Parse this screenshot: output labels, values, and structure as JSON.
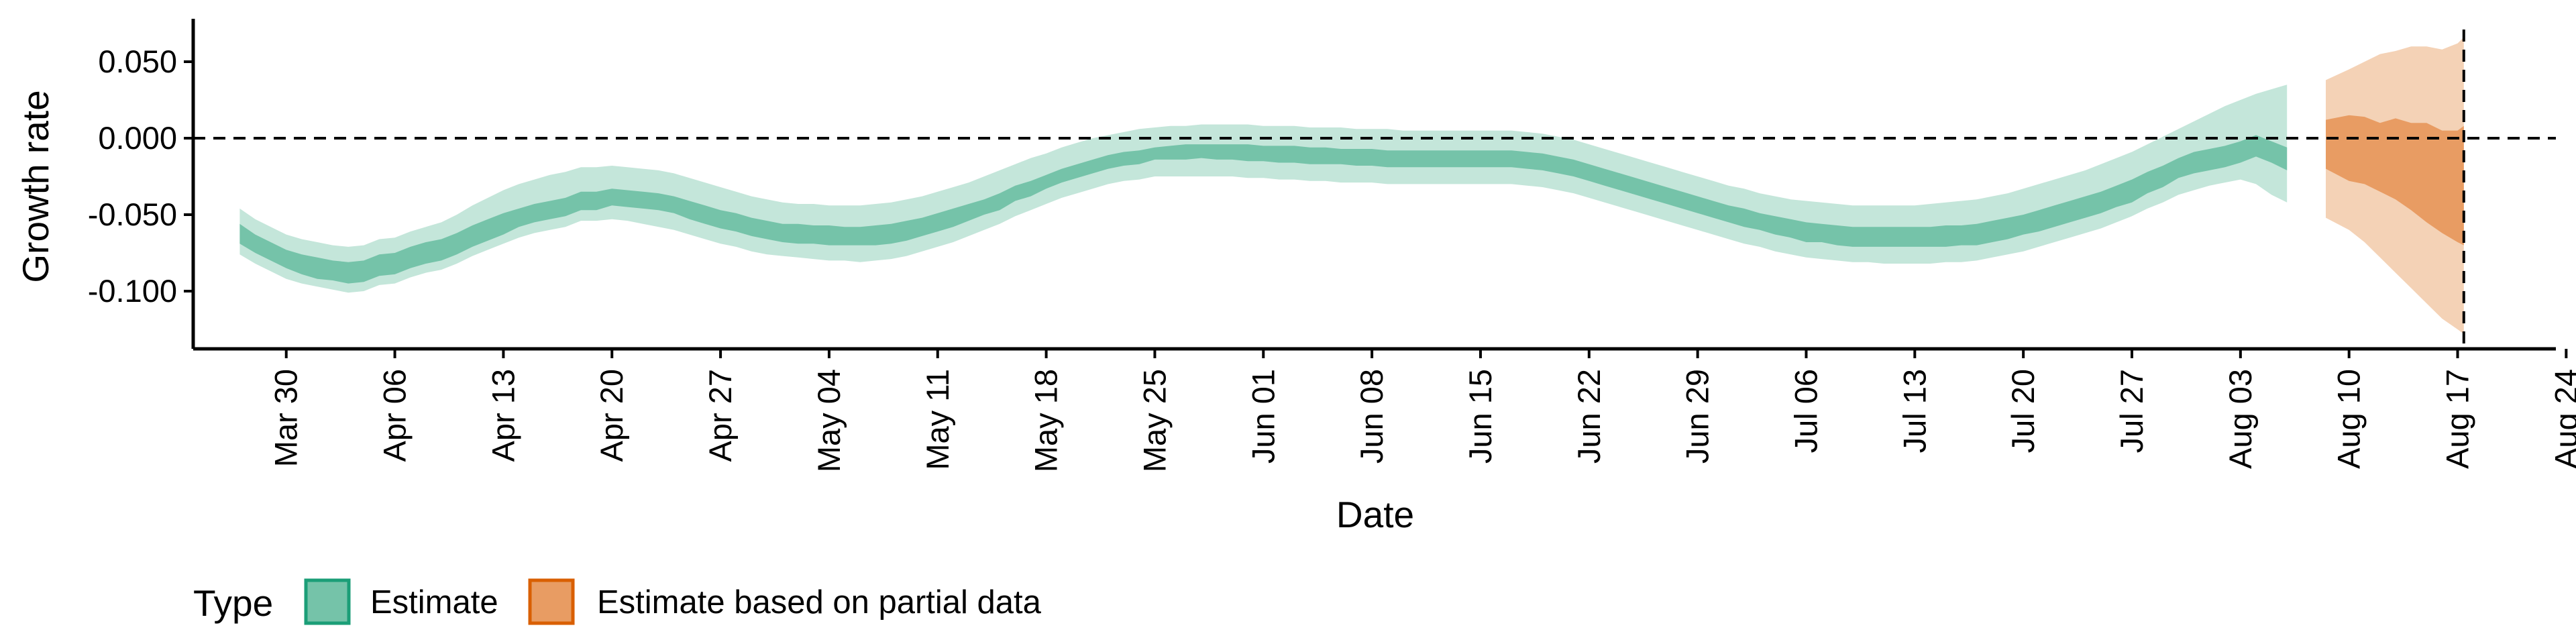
{
  "chart_data": {
    "type": "area",
    "title": "",
    "xlabel": "Date",
    "ylabel": "Growth rate",
    "ylim": [
      -0.138,
      0.078
    ],
    "xlim": [
      "Mar 24",
      "Aug 25"
    ],
    "grid": false,
    "y_ticks": [
      {
        "value": 0.05,
        "label": "0.050"
      },
      {
        "value": 0.0,
        "label": "0.000"
      },
      {
        "value": -0.05,
        "label": "-0.050"
      },
      {
        "value": -0.1,
        "label": "-0.100"
      }
    ],
    "x_ticks": [
      {
        "day": 6,
        "label": "Mar 30"
      },
      {
        "day": 13,
        "label": "Apr 06"
      },
      {
        "day": 20,
        "label": "Apr 13"
      },
      {
        "day": 27,
        "label": "Apr 20"
      },
      {
        "day": 34,
        "label": "Apr 27"
      },
      {
        "day": 41,
        "label": "May 04"
      },
      {
        "day": 48,
        "label": "May 11"
      },
      {
        "day": 55,
        "label": "May 18"
      },
      {
        "day": 62,
        "label": "May 25"
      },
      {
        "day": 69,
        "label": "Jun 01"
      },
      {
        "day": 76,
        "label": "Jun 08"
      },
      {
        "day": 83,
        "label": "Jun 15"
      },
      {
        "day": 90,
        "label": "Jun 22"
      },
      {
        "day": 97,
        "label": "Jun 29"
      },
      {
        "day": 104,
        "label": "Jul 06"
      },
      {
        "day": 111,
        "label": "Jul 13"
      },
      {
        "day": 118,
        "label": "Jul 20"
      },
      {
        "day": 125,
        "label": "Jul 27"
      },
      {
        "day": 132,
        "label": "Aug 03"
      },
      {
        "day": 139,
        "label": "Aug 10"
      },
      {
        "day": 146,
        "label": "Aug 17"
      },
      {
        "day": 153,
        "label": "Aug 24"
      }
    ],
    "x_day_zero": "Mar 24",
    "reference_lines": [
      {
        "axis": "y",
        "value": 0.0,
        "style": "dashed"
      },
      {
        "axis": "x",
        "day": 146.4,
        "label": "Aug 17",
        "style": "dashed"
      }
    ],
    "legend": {
      "title": "Type",
      "position": "bottom-left",
      "items": [
        {
          "label": "Estimate",
          "fill": "#75c3a9",
          "stroke": "#1b9e77"
        },
        {
          "label": "Estimate based on partial data",
          "fill": "#e89c63",
          "stroke": "#d95f02"
        }
      ]
    },
    "series": [
      {
        "name": "Estimate",
        "color_inner": "#75c3a9",
        "color_outer": "#c4e6da",
        "x": [
          3,
          4,
          5,
          6,
          7,
          8,
          9,
          10,
          11,
          12,
          13,
          14,
          15,
          16,
          17,
          18,
          19,
          20,
          21,
          22,
          23,
          24,
          25,
          26,
          27,
          28,
          29,
          30,
          31,
          32,
          33,
          34,
          35,
          36,
          37,
          38,
          39,
          40,
          41,
          42,
          43,
          44,
          45,
          46,
          47,
          48,
          49,
          50,
          51,
          52,
          53,
          54,
          55,
          56,
          57,
          58,
          59,
          60,
          61,
          62,
          63,
          64,
          65,
          66,
          67,
          68,
          69,
          70,
          71,
          72,
          73,
          74,
          75,
          76,
          77,
          78,
          79,
          80,
          81,
          82,
          83,
          84,
          85,
          86,
          87,
          88,
          89,
          90,
          91,
          92,
          93,
          94,
          95,
          96,
          97,
          98,
          99,
          100,
          101,
          102,
          103,
          104,
          105,
          106,
          107,
          108,
          109,
          110,
          111,
          112,
          113,
          114,
          115,
          116,
          117,
          118,
          119,
          120,
          121,
          122,
          123,
          124,
          125,
          126,
          127,
          128,
          129,
          130,
          131,
          132,
          133,
          134,
          135
        ],
        "inner_lower": [
          -0.069,
          -0.075,
          -0.08,
          -0.085,
          -0.089,
          -0.092,
          -0.093,
          -0.095,
          -0.094,
          -0.09,
          -0.089,
          -0.085,
          -0.082,
          -0.08,
          -0.076,
          -0.071,
          -0.067,
          -0.063,
          -0.058,
          -0.055,
          -0.053,
          -0.051,
          -0.047,
          -0.047,
          -0.044,
          -0.045,
          -0.046,
          -0.047,
          -0.049,
          -0.053,
          -0.056,
          -0.059,
          -0.061,
          -0.064,
          -0.066,
          -0.068,
          -0.069,
          -0.069,
          -0.07,
          -0.07,
          -0.07,
          -0.07,
          -0.069,
          -0.067,
          -0.064,
          -0.061,
          -0.058,
          -0.054,
          -0.05,
          -0.047,
          -0.041,
          -0.038,
          -0.033,
          -0.029,
          -0.026,
          -0.023,
          -0.02,
          -0.018,
          -0.017,
          -0.014,
          -0.014,
          -0.014,
          -0.013,
          -0.014,
          -0.014,
          -0.015,
          -0.015,
          -0.016,
          -0.016,
          -0.017,
          -0.017,
          -0.017,
          -0.018,
          -0.018,
          -0.019,
          -0.019,
          -0.019,
          -0.019,
          -0.019,
          -0.019,
          -0.019,
          -0.019,
          -0.019,
          -0.02,
          -0.021,
          -0.023,
          -0.025,
          -0.028,
          -0.031,
          -0.034,
          -0.037,
          -0.04,
          -0.043,
          -0.046,
          -0.049,
          -0.052,
          -0.055,
          -0.058,
          -0.06,
          -0.063,
          -0.065,
          -0.068,
          -0.068,
          -0.07,
          -0.071,
          -0.071,
          -0.071,
          -0.071,
          -0.071,
          -0.071,
          -0.071,
          -0.07,
          -0.07,
          -0.068,
          -0.066,
          -0.063,
          -0.061,
          -0.058,
          -0.055,
          -0.052,
          -0.049,
          -0.045,
          -0.042,
          -0.036,
          -0.032,
          -0.026,
          -0.023,
          -0.021,
          -0.019,
          -0.016,
          -0.012,
          -0.016,
          -0.021
        ],
        "inner_upper": [
          -0.056,
          -0.063,
          -0.068,
          -0.073,
          -0.076,
          -0.078,
          -0.08,
          -0.081,
          -0.08,
          -0.076,
          -0.075,
          -0.071,
          -0.068,
          -0.066,
          -0.062,
          -0.057,
          -0.053,
          -0.049,
          -0.046,
          -0.043,
          -0.041,
          -0.039,
          -0.035,
          -0.035,
          -0.033,
          -0.034,
          -0.035,
          -0.036,
          -0.038,
          -0.041,
          -0.044,
          -0.047,
          -0.049,
          -0.052,
          -0.054,
          -0.056,
          -0.056,
          -0.057,
          -0.057,
          -0.058,
          -0.058,
          -0.057,
          -0.056,
          -0.054,
          -0.052,
          -0.049,
          -0.046,
          -0.043,
          -0.04,
          -0.036,
          -0.031,
          -0.028,
          -0.024,
          -0.02,
          -0.017,
          -0.014,
          -0.011,
          -0.009,
          -0.008,
          -0.006,
          -0.005,
          -0.004,
          -0.004,
          -0.004,
          -0.004,
          -0.004,
          -0.005,
          -0.005,
          -0.005,
          -0.006,
          -0.006,
          -0.007,
          -0.007,
          -0.007,
          -0.008,
          -0.008,
          -0.008,
          -0.008,
          -0.008,
          -0.008,
          -0.008,
          -0.008,
          -0.008,
          -0.009,
          -0.01,
          -0.012,
          -0.014,
          -0.017,
          -0.02,
          -0.023,
          -0.026,
          -0.029,
          -0.032,
          -0.035,
          -0.038,
          -0.041,
          -0.044,
          -0.046,
          -0.049,
          -0.051,
          -0.053,
          -0.055,
          -0.056,
          -0.057,
          -0.058,
          -0.058,
          -0.058,
          -0.058,
          -0.058,
          -0.058,
          -0.057,
          -0.057,
          -0.056,
          -0.054,
          -0.052,
          -0.05,
          -0.047,
          -0.044,
          -0.041,
          -0.038,
          -0.035,
          -0.031,
          -0.027,
          -0.022,
          -0.018,
          -0.013,
          -0.009,
          -0.007,
          -0.005,
          -0.002,
          0.002,
          -0.002,
          -0.006
        ],
        "outer_lower": [
          -0.076,
          -0.082,
          -0.087,
          -0.092,
          -0.095,
          -0.097,
          -0.099,
          -0.101,
          -0.1,
          -0.096,
          -0.095,
          -0.091,
          -0.088,
          -0.086,
          -0.082,
          -0.077,
          -0.073,
          -0.069,
          -0.065,
          -0.062,
          -0.06,
          -0.058,
          -0.054,
          -0.054,
          -0.053,
          -0.054,
          -0.056,
          -0.058,
          -0.06,
          -0.063,
          -0.066,
          -0.069,
          -0.071,
          -0.074,
          -0.076,
          -0.077,
          -0.078,
          -0.079,
          -0.08,
          -0.08,
          -0.081,
          -0.08,
          -0.079,
          -0.077,
          -0.074,
          -0.071,
          -0.068,
          -0.064,
          -0.06,
          -0.056,
          -0.051,
          -0.047,
          -0.043,
          -0.039,
          -0.036,
          -0.033,
          -0.03,
          -0.028,
          -0.027,
          -0.025,
          -0.025,
          -0.025,
          -0.025,
          -0.025,
          -0.025,
          -0.026,
          -0.026,
          -0.027,
          -0.027,
          -0.028,
          -0.028,
          -0.029,
          -0.029,
          -0.029,
          -0.03,
          -0.03,
          -0.03,
          -0.03,
          -0.03,
          -0.03,
          -0.03,
          -0.03,
          -0.03,
          -0.031,
          -0.032,
          -0.034,
          -0.036,
          -0.039,
          -0.042,
          -0.045,
          -0.048,
          -0.051,
          -0.054,
          -0.057,
          -0.06,
          -0.063,
          -0.066,
          -0.069,
          -0.071,
          -0.074,
          -0.076,
          -0.078,
          -0.079,
          -0.08,
          -0.081,
          -0.081,
          -0.082,
          -0.082,
          -0.082,
          -0.082,
          -0.081,
          -0.081,
          -0.08,
          -0.078,
          -0.076,
          -0.074,
          -0.071,
          -0.068,
          -0.065,
          -0.062,
          -0.059,
          -0.055,
          -0.051,
          -0.046,
          -0.042,
          -0.037,
          -0.034,
          -0.031,
          -0.029,
          -0.027,
          -0.03,
          -0.037,
          -0.042
        ],
        "outer_upper": [
          -0.046,
          -0.053,
          -0.058,
          -0.063,
          -0.066,
          -0.068,
          -0.07,
          -0.071,
          -0.07,
          -0.066,
          -0.065,
          -0.061,
          -0.058,
          -0.055,
          -0.05,
          -0.044,
          -0.039,
          -0.034,
          -0.03,
          -0.027,
          -0.024,
          -0.022,
          -0.019,
          -0.019,
          -0.018,
          -0.019,
          -0.02,
          -0.021,
          -0.023,
          -0.026,
          -0.029,
          -0.032,
          -0.035,
          -0.038,
          -0.04,
          -0.042,
          -0.043,
          -0.043,
          -0.044,
          -0.044,
          -0.044,
          -0.043,
          -0.042,
          -0.04,
          -0.038,
          -0.035,
          -0.032,
          -0.029,
          -0.025,
          -0.021,
          -0.017,
          -0.013,
          -0.01,
          -0.006,
          -0.003,
          0.0,
          0.002,
          0.004,
          0.006,
          0.007,
          0.008,
          0.008,
          0.009,
          0.009,
          0.009,
          0.009,
          0.008,
          0.008,
          0.008,
          0.007,
          0.007,
          0.007,
          0.006,
          0.006,
          0.006,
          0.005,
          0.005,
          0.005,
          0.005,
          0.005,
          0.005,
          0.005,
          0.005,
          0.004,
          0.003,
          0.001,
          -0.001,
          -0.004,
          -0.007,
          -0.01,
          -0.013,
          -0.016,
          -0.019,
          -0.022,
          -0.025,
          -0.028,
          -0.031,
          -0.033,
          -0.036,
          -0.038,
          -0.04,
          -0.041,
          -0.042,
          -0.043,
          -0.044,
          -0.044,
          -0.044,
          -0.044,
          -0.044,
          -0.043,
          -0.042,
          -0.041,
          -0.04,
          -0.038,
          -0.036,
          -0.033,
          -0.03,
          -0.027,
          -0.024,
          -0.021,
          -0.017,
          -0.013,
          -0.009,
          -0.004,
          0.001,
          0.006,
          0.011,
          0.016,
          0.021,
          0.025,
          0.029,
          0.032,
          0.035
        ]
      },
      {
        "name": "Estimate based on partial data",
        "color_inner": "#e89c63",
        "color_outer": "#f4d2b6",
        "x": [
          137.5,
          139,
          140,
          141,
          142,
          143,
          144,
          145,
          146,
          146.4
        ],
        "inner_lower": [
          -0.02,
          -0.028,
          -0.03,
          -0.035,
          -0.04,
          -0.047,
          -0.055,
          -0.062,
          -0.068,
          -0.07
        ],
        "inner_upper": [
          0.012,
          0.015,
          0.014,
          0.01,
          0.013,
          0.01,
          0.01,
          0.005,
          0.005,
          0.008
        ],
        "outer_lower": [
          -0.052,
          -0.06,
          -0.068,
          -0.078,
          -0.088,
          -0.098,
          -0.108,
          -0.118,
          -0.125,
          -0.128
        ],
        "outer_upper": [
          0.038,
          0.045,
          0.05,
          0.055,
          0.057,
          0.06,
          0.06,
          0.058,
          0.062,
          0.066
        ]
      }
    ]
  }
}
